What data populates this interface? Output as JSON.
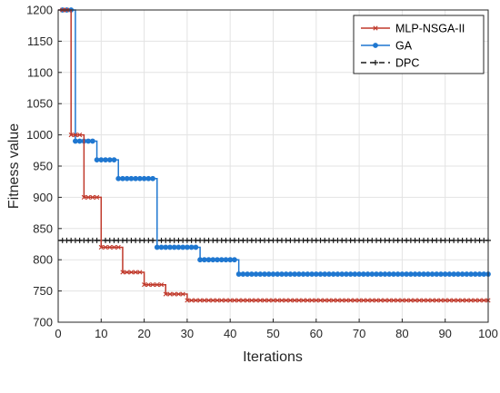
{
  "chart_data": {
    "type": "line",
    "xlabel": "Iterations",
    "ylabel": "Fitness value",
    "xlim": [
      0,
      100
    ],
    "ylim": [
      700,
      1200
    ],
    "x_ticks": [
      "0",
      "10",
      "20",
      "30",
      "40",
      "50",
      "60",
      "70",
      "80",
      "90",
      "100"
    ],
    "y_ticks": [
      "700",
      "750",
      "800",
      "850",
      "900",
      "950",
      "1000",
      "1050",
      "1100",
      "1150",
      "1200"
    ],
    "grid": true,
    "legend_position": "top-right",
    "series": [
      {
        "name": "MLP-NSGA-II",
        "color": "#c0392b",
        "marker": "x-mark",
        "steps": [
          [
            0,
            1200
          ],
          [
            3,
            1000
          ],
          [
            6,
            900
          ],
          [
            10,
            820
          ],
          [
            15,
            780
          ],
          [
            20,
            760
          ],
          [
            25,
            745
          ],
          [
            30,
            735
          ],
          [
            100,
            735
          ]
        ]
      },
      {
        "name": "GA",
        "color": "#1f77d0",
        "marker": "dot",
        "steps": [
          [
            0,
            1200
          ],
          [
            4,
            990
          ],
          [
            9,
            960
          ],
          [
            14,
            930
          ],
          [
            23,
            820
          ],
          [
            33,
            800
          ],
          [
            42,
            777
          ],
          [
            100,
            777
          ]
        ]
      },
      {
        "name": "DPC",
        "color": "#1a1a1a",
        "marker": "plus",
        "line_style": "dashed",
        "steps": [
          [
            0,
            831
          ],
          [
            100,
            831
          ]
        ]
      }
    ]
  }
}
